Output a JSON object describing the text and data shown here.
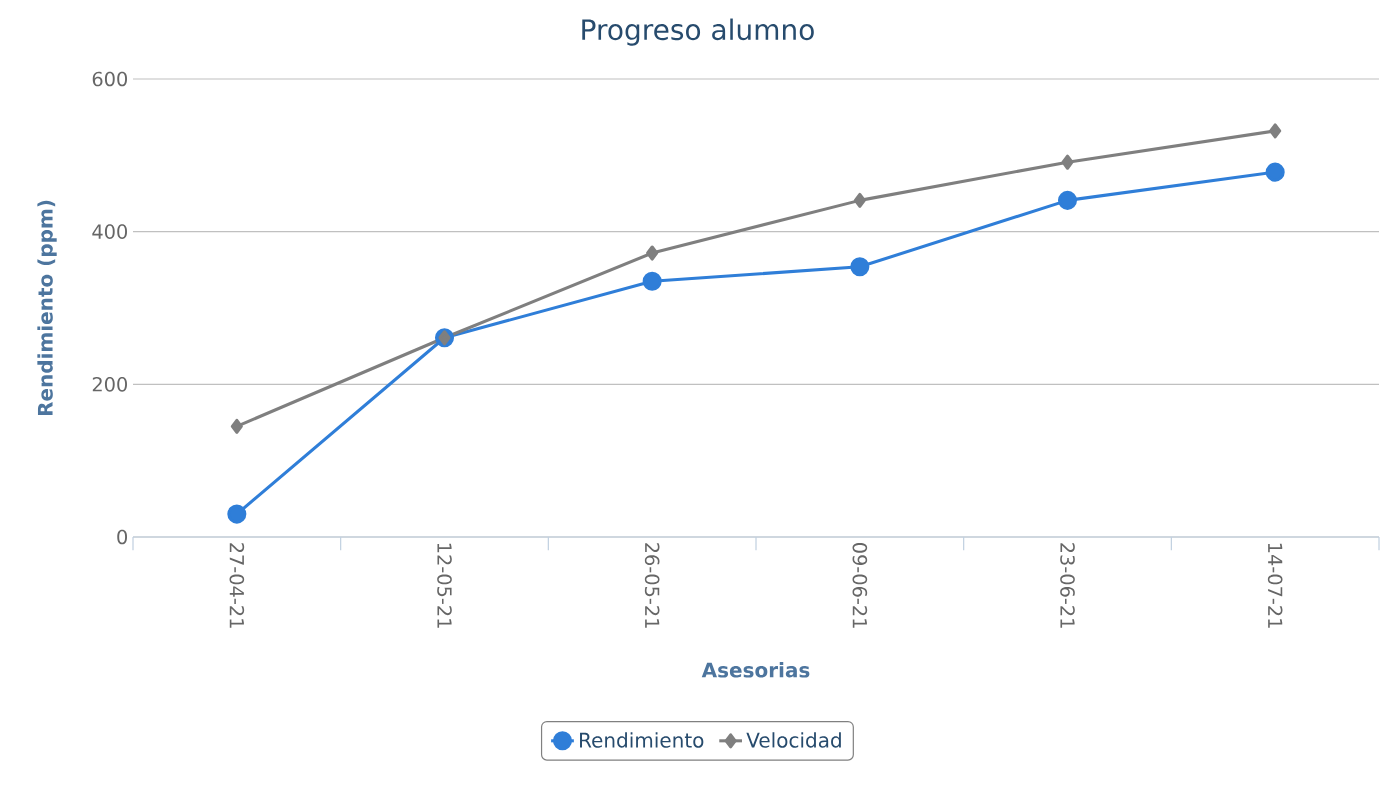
{
  "chart_data": {
    "type": "line",
    "title": "Progreso alumno",
    "xlabel": "Asesorias",
    "ylabel": "Rendimiento (ppm)",
    "categories": [
      "27-04-21",
      "12-05-21",
      "26-05-21",
      "09-06-21",
      "23-06-21",
      "14-07-21"
    ],
    "series": [
      {
        "name": "Rendimiento",
        "color": "#2f7ed8",
        "marker": "circle",
        "values": [
          30,
          261,
          335,
          354,
          441,
          478
        ]
      },
      {
        "name": "Velocidad",
        "color": "#7f7f7f",
        "marker": "diamond",
        "values": [
          145,
          261,
          372,
          441,
          491,
          532
        ]
      }
    ],
    "ylim": [
      0,
      600
    ],
    "yticks": [
      0,
      200,
      400,
      600
    ],
    "grid": "y",
    "legend": "bottom",
    "line_style": "solid"
  }
}
